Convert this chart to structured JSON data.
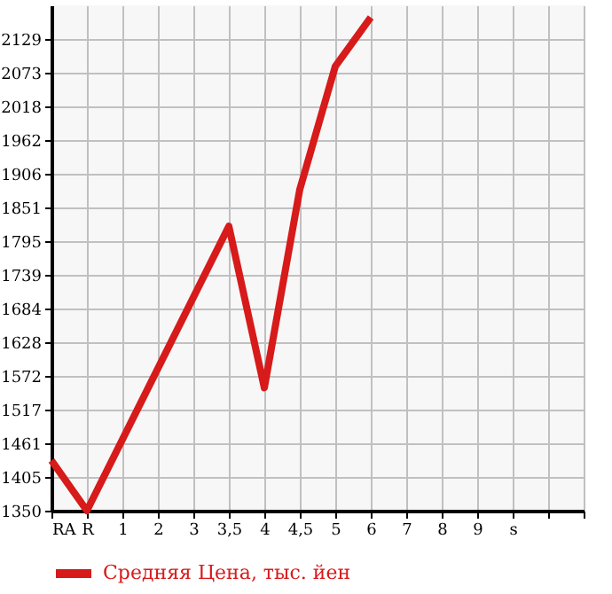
{
  "chart_data": {
    "type": "line",
    "categories": [
      "RA",
      "R",
      "1",
      "2",
      "3",
      "3,5",
      "4",
      "4,5",
      "5",
      "6",
      "7",
      "8",
      "9",
      "s",
      null
    ],
    "series": [
      {
        "name": "Средняя Цена, тыс. йен",
        "color": "#d71a1a",
        "values": [
          1433,
          1350,
          null,
          null,
          null,
          1820,
          1553,
          1881,
          2084,
          2165,
          null,
          null,
          null,
          null,
          null
        ]
      }
    ],
    "ylim": [
      1350,
      2185
    ],
    "yticks": [
      1350,
      1405,
      1461,
      1517,
      1572,
      1628,
      1684,
      1739,
      1795,
      1851,
      1906,
      1962,
      2018,
      2073,
      2129
    ],
    "grid": true,
    "legend": "bottom left",
    "line_style": "solid",
    "marker": "none"
  }
}
